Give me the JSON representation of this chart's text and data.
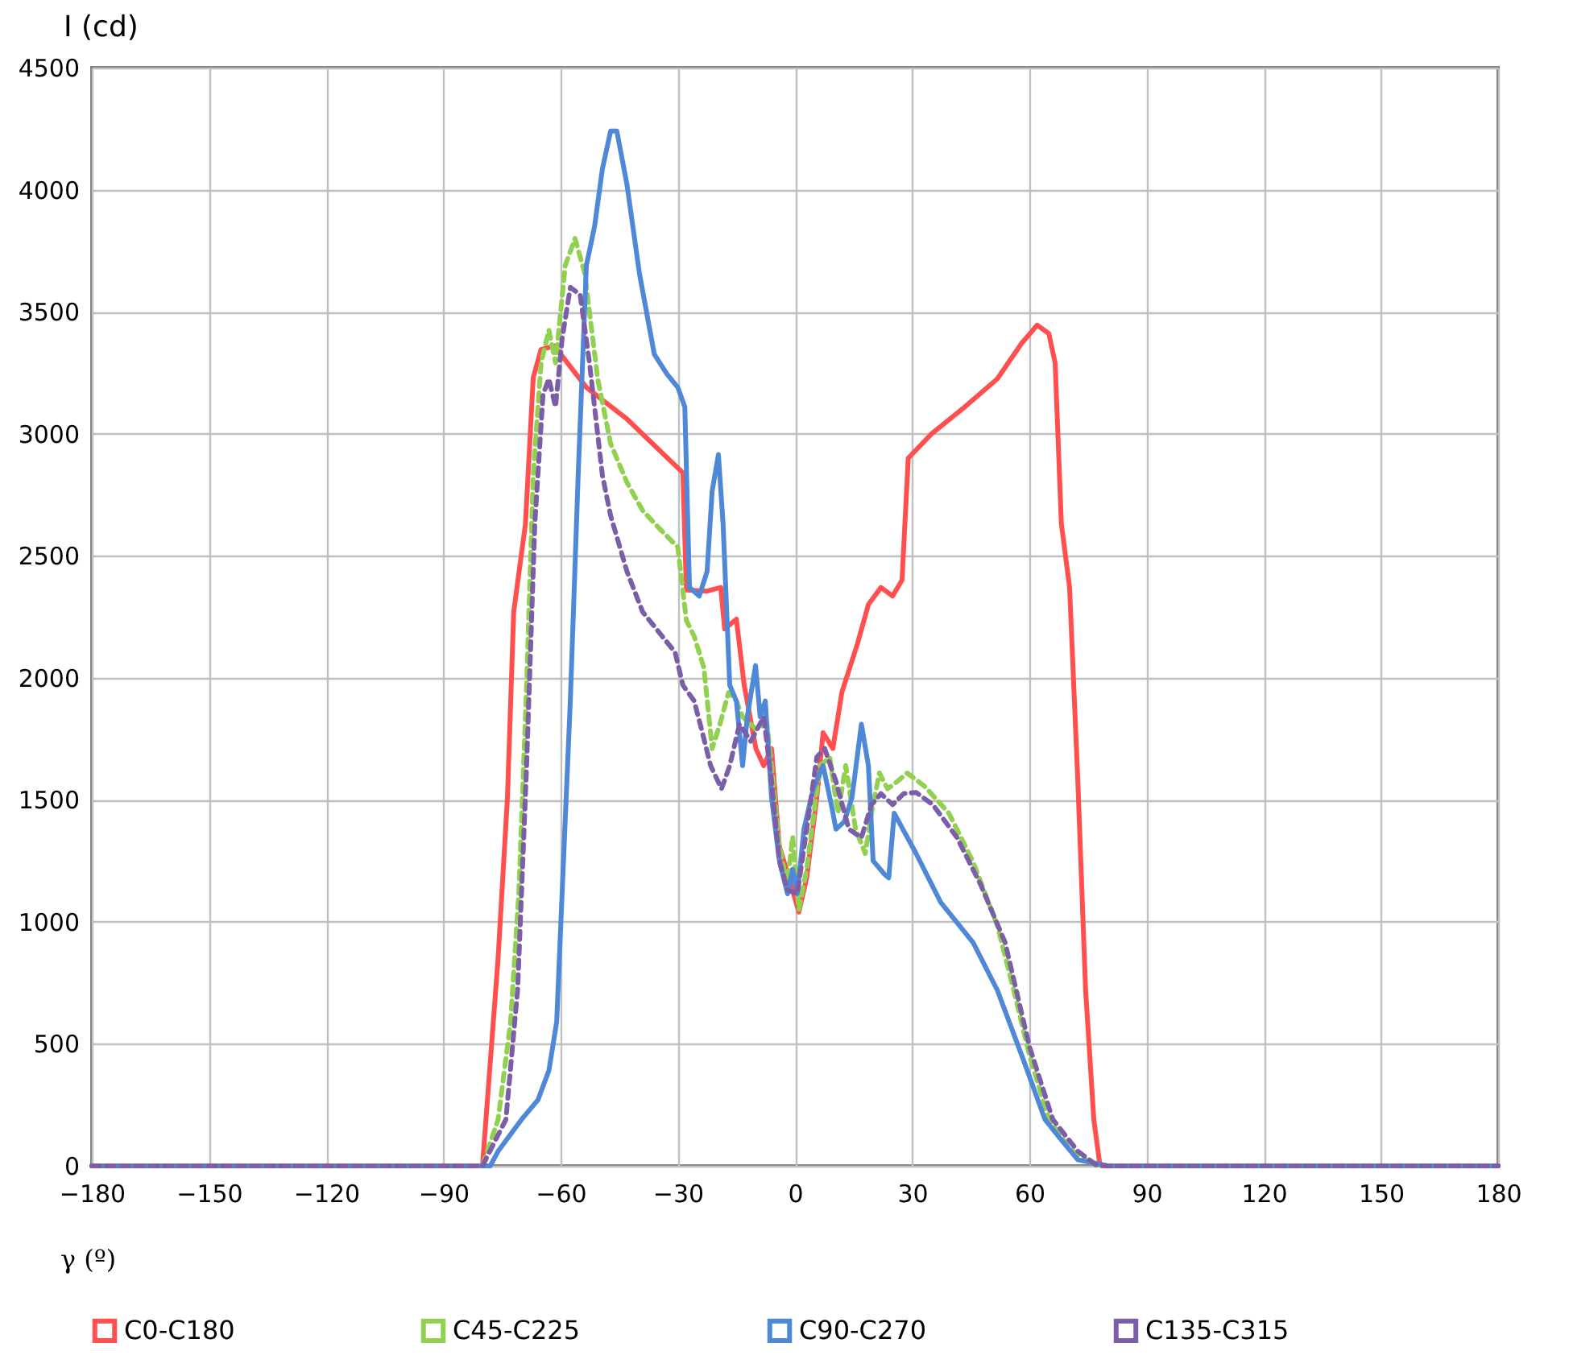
{
  "chart_data": {
    "type": "line",
    "xlabel": "γ (º)",
    "ylabel": "I (cd)",
    "xlim": [
      -180,
      180
    ],
    "xticks": [
      -180,
      -150,
      -120,
      -90,
      -60,
      -30,
      0,
      30,
      60,
      90,
      120,
      150,
      180
    ],
    "ylim": [
      0,
      4500
    ],
    "yticks": [
      0,
      500,
      1000,
      1500,
      2000,
      2500,
      3000,
      3500,
      4000,
      4500
    ],
    "grid": true,
    "legend": "bottom",
    "marker": "none",
    "series": [
      {
        "name": "C0-C180",
        "color": "#ff4f4f",
        "line_style": "solid",
        "x": [
          -180,
          -80,
          -76,
          -73.6,
          -72,
          -69,
          -67,
          -65,
          -61.6,
          -53.4,
          -43,
          -28.7,
          -27.8,
          -22.5,
          -19,
          -18,
          -15,
          -13,
          -10,
          -8,
          -6,
          -4,
          -1,
          1,
          3,
          5.6,
          7.2,
          9.7,
          12,
          14,
          16,
          18.8,
          22,
          25,
          27.4,
          29,
          35,
          43.5,
          51.8,
          58,
          62,
          65,
          66.6,
          68.2,
          70.3,
          72.4,
          74.4,
          76.5,
          78,
          78.5,
          180
        ],
        "values": [
          0,
          0,
          850,
          1510,
          2270,
          2630,
          3230,
          3345,
          3360,
          3190,
          3060,
          2840,
          2360,
          2355,
          2370,
          2200,
          2240,
          1970,
          1710,
          1640,
          1710,
          1310,
          1150,
          1040,
          1180,
          1510,
          1775,
          1710,
          1940,
          2040,
          2140,
          2300,
          2370,
          2335,
          2400,
          2900,
          3000,
          3110,
          3225,
          3370,
          3445,
          3410,
          3290,
          2630,
          2370,
          1580,
          720,
          190,
          10,
          0,
          0
        ]
      },
      {
        "name": "C45-C225",
        "color": "#92d050",
        "line_style": "dashed",
        "x": [
          -180,
          -80,
          -76,
          -72.8,
          -70.7,
          -68.7,
          -67,
          -65,
          -63,
          -61.3,
          -58.8,
          -56.3,
          -53.8,
          -50.5,
          -47.2,
          -43,
          -39,
          -34,
          -30,
          -27.8,
          -25.8,
          -23.3,
          -21.2,
          -19.2,
          -17,
          -15,
          -13.4,
          -10,
          -7.2,
          -6,
          -4,
          -2,
          -0.6,
          1,
          3,
          6.4,
          8.9,
          11,
          13,
          15.5,
          18,
          19.6,
          21.6,
          23.7,
          26.2,
          28.7,
          33.2,
          39.4,
          45.6,
          51.8,
          56,
          60,
          65,
          70.3,
          76.5,
          80,
          180
        ],
        "values": [
          0,
          0,
          190,
          590,
          1115,
          1970,
          2830,
          3290,
          3425,
          3290,
          3690,
          3800,
          3655,
          3225,
          2960,
          2800,
          2685,
          2600,
          2535,
          2235,
          2170,
          2040,
          1710,
          1810,
          1940,
          1905,
          1840,
          1790,
          1810,
          1640,
          1310,
          1150,
          1350,
          1050,
          1215,
          1640,
          1675,
          1445,
          1640,
          1380,
          1280,
          1445,
          1610,
          1545,
          1575,
          1610,
          1555,
          1445,
          1245,
          985,
          720,
          455,
          190,
          70,
          5,
          0,
          0
        ]
      },
      {
        "name": "C90-C270",
        "color": "#4f88d6",
        "line_style": "solid",
        "x": [
          -180,
          -78,
          -76,
          -70,
          -65.8,
          -63,
          -61,
          -59.6,
          -57.5,
          -55.5,
          -53.4,
          -51.3,
          -49.3,
          -47.2,
          -45.6,
          -43,
          -39.8,
          -36,
          -32.8,
          -30,
          -28.2,
          -27,
          -24.5,
          -22.5,
          -21.2,
          -19.6,
          -18.4,
          -16.7,
          -15,
          -13.4,
          -12.2,
          -10.1,
          -8.9,
          -7.6,
          -6,
          -4,
          -1.9,
          -0.6,
          0.6,
          2.3,
          4.7,
          7.2,
          9.3,
          10.5,
          12.6,
          14.6,
          17,
          18.8,
          20,
          22.9,
          24,
          25.4,
          31,
          37.3,
          45.6,
          51.8,
          58,
          64,
          68,
          72.4,
          78.6,
          80,
          180
        ],
        "values": [
          0,
          0,
          60,
          190,
          270,
          390,
          590,
          1120,
          1910,
          2830,
          3690,
          3850,
          4085,
          4240,
          4240,
          4020,
          3655,
          3325,
          3245,
          3190,
          3110,
          2370,
          2335,
          2435,
          2765,
          2915,
          2630,
          1970,
          1905,
          1640,
          1840,
          2050,
          1840,
          1905,
          1510,
          1250,
          1115,
          1215,
          1115,
          1380,
          1545,
          1640,
          1480,
          1380,
          1410,
          1510,
          1810,
          1640,
          1250,
          1195,
          1180,
          1445,
          1280,
          1080,
          915,
          720,
          455,
          190,
          110,
          25,
          5,
          0,
          0
        ]
      },
      {
        "name": "C135-C315",
        "color": "#7c5ea8",
        "line_style": "dashed",
        "x": [
          -180,
          -80,
          -74,
          -71,
          -68.7,
          -66.6,
          -64.5,
          -63,
          -61.3,
          -59.6,
          -57.5,
          -55,
          -52.6,
          -49.3,
          -47.2,
          -43,
          -39,
          -34,
          -30.7,
          -28.7,
          -25.8,
          -23.7,
          -21.6,
          -18.8,
          -16.7,
          -14.2,
          -11.3,
          -8,
          -6,
          -4,
          -1.9,
          0.6,
          3,
          5.6,
          7.6,
          10.5,
          13.8,
          17,
          19.6,
          22,
          25,
          27.8,
          31,
          35.3,
          41.5,
          47.6,
          53.8,
          60,
          66,
          72.4,
          77,
          80,
          180
        ],
        "values": [
          0,
          0,
          190,
          720,
          1640,
          2630,
          3160,
          3225,
          3110,
          3390,
          3600,
          3570,
          3290,
          2830,
          2665,
          2435,
          2270,
          2170,
          2105,
          1970,
          1905,
          1775,
          1640,
          1545,
          1640,
          1810,
          1740,
          1840,
          1575,
          1250,
          1130,
          1115,
          1380,
          1675,
          1710,
          1575,
          1380,
          1345,
          1480,
          1525,
          1480,
          1525,
          1530,
          1480,
          1345,
          1150,
          915,
          490,
          190,
          60,
          5,
          0,
          0
        ]
      }
    ]
  }
}
